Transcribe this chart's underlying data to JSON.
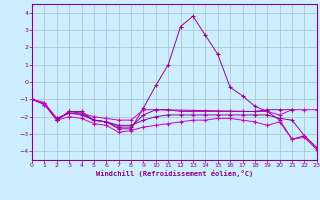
{
  "xlabel": "Windchill (Refroidissement éolien,°C)",
  "bg_color": "#cceeff",
  "grid_color": "#aacccc",
  "axis_color": "#880088",
  "line_color": "#990099",
  "line_color2": "#cc00cc",
  "xlim": [
    0,
    23
  ],
  "ylim": [
    -4.5,
    4.5
  ],
  "yticks": [
    -4,
    -3,
    -2,
    -1,
    0,
    1,
    2,
    3,
    4
  ],
  "xticks": [
    0,
    1,
    2,
    3,
    4,
    5,
    6,
    7,
    8,
    9,
    10,
    11,
    12,
    13,
    14,
    15,
    16,
    17,
    18,
    19,
    20,
    21,
    22,
    23
  ],
  "line1_x": [
    0,
    1,
    2,
    3,
    4,
    5,
    6,
    7,
    8,
    9,
    10,
    11,
    12,
    13,
    14,
    15,
    16,
    17,
    18,
    19,
    20,
    21,
    22,
    23
  ],
  "line1_y": [
    -1.0,
    -1.3,
    -2.2,
    -1.7,
    -1.7,
    -2.2,
    -2.3,
    -2.7,
    -2.7,
    -1.5,
    -0.2,
    1.0,
    3.2,
    3.8,
    2.7,
    1.6,
    -0.3,
    -0.8,
    -1.4,
    -1.7,
    -2.2,
    -3.3,
    -3.1,
    -3.8
  ],
  "line2_x": [
    0,
    1,
    2,
    3,
    4,
    5,
    6,
    7,
    8,
    9,
    10,
    11,
    12,
    13,
    14,
    15,
    16,
    17,
    18,
    19,
    20,
    21,
    22,
    23
  ],
  "line2_y": [
    -1.0,
    -1.3,
    -2.1,
    -1.8,
    -1.8,
    -2.0,
    -2.1,
    -2.2,
    -2.2,
    -1.6,
    -1.6,
    -1.6,
    -1.7,
    -1.7,
    -1.7,
    -1.7,
    -1.7,
    -1.7,
    -1.7,
    -1.7,
    -1.9,
    -1.6,
    -1.6,
    -1.6
  ],
  "line3_x": [
    0,
    1,
    2,
    3,
    4,
    5,
    6,
    7,
    8,
    9,
    10,
    11,
    12,
    13,
    14,
    15,
    16,
    17,
    18,
    19,
    20,
    21,
    22,
    23
  ],
  "line3_y": [
    -1.0,
    -1.2,
    -2.1,
    -1.8,
    -1.9,
    -2.2,
    -2.3,
    -2.5,
    -2.5,
    -2.2,
    -2.0,
    -1.9,
    -1.9,
    -1.9,
    -1.9,
    -1.9,
    -1.9,
    -1.9,
    -1.9,
    -1.9,
    -2.1,
    -2.2,
    -3.1,
    -3.8
  ],
  "line4_x": [
    0,
    1,
    2,
    3,
    4,
    5,
    6,
    7,
    8,
    9,
    10,
    11,
    12,
    13,
    14,
    15,
    16,
    17,
    18,
    19,
    20,
    21,
    22,
    23
  ],
  "line4_y": [
    -1.0,
    -1.2,
    -2.2,
    -2.0,
    -2.1,
    -2.4,
    -2.5,
    -2.9,
    -2.8,
    -2.6,
    -2.5,
    -2.4,
    -2.3,
    -2.2,
    -2.2,
    -2.1,
    -2.1,
    -2.2,
    -2.3,
    -2.5,
    -2.3,
    -3.3,
    -3.2,
    -3.9
  ],
  "line5_x": [
    2,
    3,
    4,
    5,
    6,
    7,
    8,
    9,
    10,
    18,
    19,
    20,
    21
  ],
  "line5_y": [
    -2.2,
    -1.7,
    -1.8,
    -2.2,
    -2.3,
    -2.6,
    -2.6,
    -1.9,
    -1.6,
    -1.7,
    -1.6,
    -1.6,
    -1.6
  ]
}
